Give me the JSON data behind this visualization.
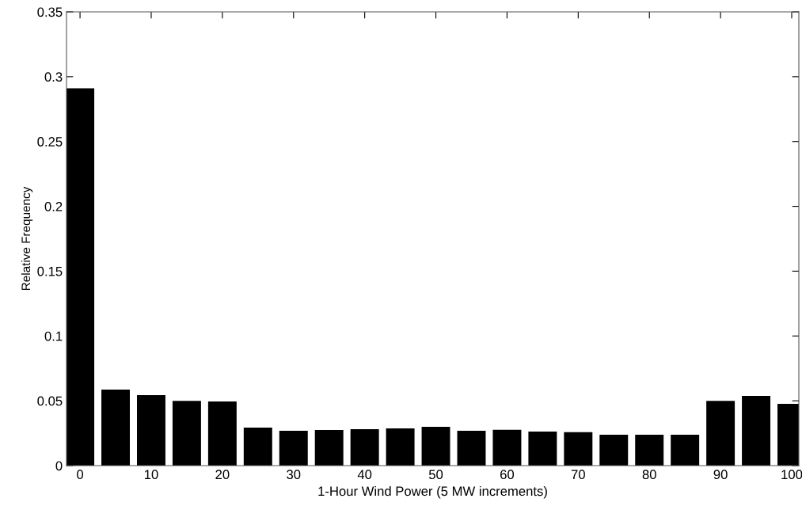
{
  "chart_data": {
    "type": "bar",
    "xlabel": "1-Hour Wind Power (5 MW increments)",
    "ylabel": "Relative Frequency",
    "x": [
      0,
      5,
      10,
      15,
      20,
      25,
      30,
      35,
      40,
      45,
      50,
      55,
      60,
      65,
      70,
      75,
      80,
      85,
      90,
      95,
      100
    ],
    "values": [
      0.291,
      0.0586,
      0.0544,
      0.05,
      0.0495,
      0.0293,
      0.0269,
      0.0275,
      0.0281,
      0.0287,
      0.0299,
      0.0269,
      0.0277,
      0.0263,
      0.0258,
      0.0238,
      0.0238,
      0.0238,
      0.05,
      0.0538,
      0.0476
    ],
    "color": "#000000",
    "xlim": [
      -1.9,
      101
    ],
    "xticks": [
      0,
      10,
      20,
      30,
      40,
      50,
      60,
      70,
      80,
      90,
      100
    ],
    "ylim": [
      0,
      0.35
    ],
    "yticks": [
      0,
      0.05,
      0.1,
      0.15,
      0.2,
      0.25,
      0.3,
      0.35
    ],
    "grid": false,
    "legend": false
  }
}
